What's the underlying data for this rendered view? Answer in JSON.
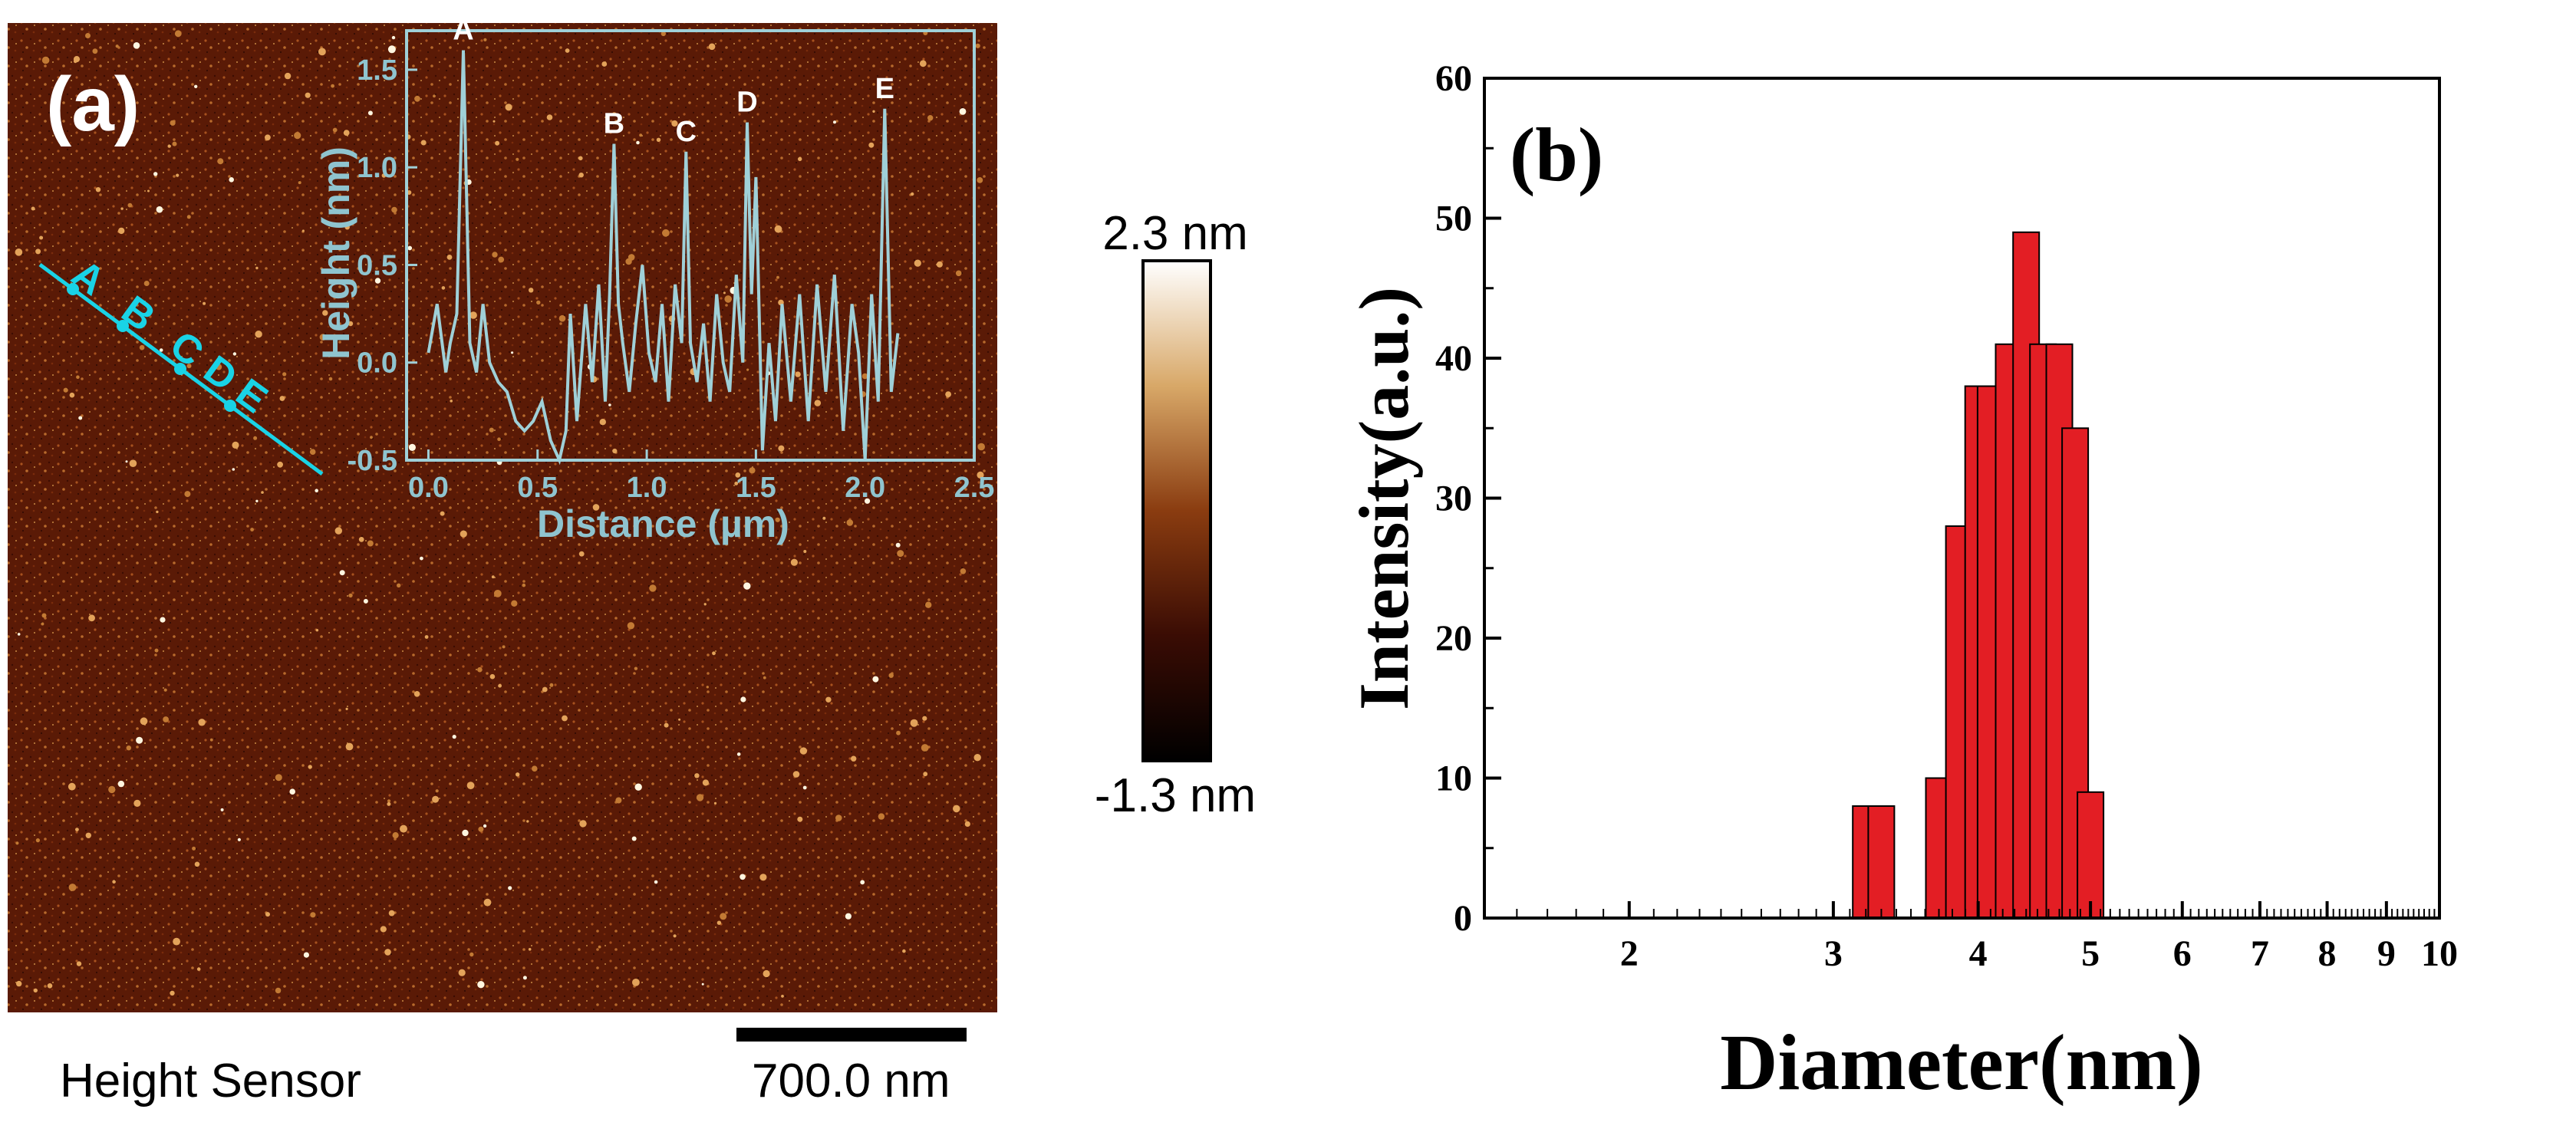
{
  "panel_a": {
    "label": "(a)",
    "caption": "Height Sensor",
    "scale_bar_label": "700.0 nm",
    "colorbar": {
      "max_label": "2.3 nm",
      "min_label": "-1.3 nm"
    },
    "line_markers": [
      "A",
      "B",
      "C",
      "D",
      "E"
    ],
    "colors": {
      "afm_background": "#5a1a06",
      "line": "#19d3e6",
      "inset_line": "#9fd0d8"
    }
  },
  "chart_data": [
    {
      "type": "line",
      "title": "",
      "xlabel": "Distance (µm)",
      "ylabel": "Height (nm)",
      "xlim": [
        -0.1,
        2.5
      ],
      "ylim": [
        -0.5,
        1.7
      ],
      "x_ticks": [
        "0.0",
        "0.5",
        "1.0",
        "1.5",
        "2.0",
        "2.5"
      ],
      "y_ticks": [
        "-0.5",
        "0.0",
        "0.5",
        "1.0",
        "1.5"
      ],
      "peak_labels": [
        {
          "label": "A",
          "x": 0.16,
          "y": 1.6
        },
        {
          "label": "B",
          "x": 0.85,
          "y": 1.12
        },
        {
          "label": "C",
          "x": 1.18,
          "y": 1.08
        },
        {
          "label": "D",
          "x": 1.46,
          "y": 1.23
        },
        {
          "label": "E",
          "x": 2.09,
          "y": 1.3
        }
      ],
      "x": [
        0.0,
        0.04,
        0.08,
        0.1,
        0.13,
        0.16,
        0.19,
        0.22,
        0.25,
        0.28,
        0.32,
        0.36,
        0.4,
        0.44,
        0.48,
        0.52,
        0.56,
        0.6,
        0.63,
        0.65,
        0.68,
        0.72,
        0.75,
        0.78,
        0.81,
        0.83,
        0.85,
        0.87,
        0.89,
        0.92,
        0.95,
        0.98,
        1.01,
        1.04,
        1.07,
        1.1,
        1.13,
        1.16,
        1.18,
        1.2,
        1.23,
        1.26,
        1.29,
        1.32,
        1.35,
        1.38,
        1.41,
        1.44,
        1.46,
        1.48,
        1.5,
        1.53,
        1.56,
        1.59,
        1.62,
        1.66,
        1.7,
        1.74,
        1.78,
        1.82,
        1.86,
        1.9,
        1.94,
        1.97,
        2.0,
        2.03,
        2.06,
        2.09,
        2.12,
        2.15
      ],
      "y": [
        0.05,
        0.3,
        -0.05,
        0.1,
        0.25,
        1.6,
        0.1,
        -0.05,
        0.3,
        0.0,
        -0.1,
        -0.15,
        -0.3,
        -0.35,
        -0.3,
        -0.2,
        -0.4,
        -0.5,
        -0.35,
        0.25,
        -0.3,
        0.3,
        -0.1,
        0.4,
        -0.2,
        0.35,
        1.12,
        0.3,
        0.1,
        -0.15,
        0.2,
        0.5,
        0.05,
        -0.1,
        0.3,
        -0.2,
        0.4,
        0.1,
        1.08,
        0.1,
        -0.1,
        0.2,
        -0.2,
        0.35,
        0.0,
        -0.15,
        0.45,
        0.0,
        1.23,
        0.35,
        0.95,
        -0.45,
        0.1,
        -0.3,
        0.3,
        -0.2,
        0.35,
        -0.3,
        0.4,
        -0.15,
        0.45,
        -0.35,
        0.3,
        0.05,
        -0.5,
        0.35,
        -0.2,
        1.3,
        -0.15,
        0.15
      ]
    },
    {
      "type": "bar",
      "title": "",
      "panel_label": "(b)",
      "xlabel": "Diameter(nm)",
      "ylabel": "Intensity(a.u.)",
      "x_scale": "log",
      "xlim": [
        1.5,
        10
      ],
      "ylim": [
        0,
        60
      ],
      "x_ticks": [
        "2",
        "3",
        "4",
        "5",
        "6",
        "7",
        "8",
        "9",
        "10"
      ],
      "y_ticks": [
        "0",
        "10",
        "20",
        "30",
        "40",
        "50",
        "60"
      ],
      "bar_color": "#e31e24",
      "categories": [
        3.2,
        3.3,
        3.7,
        3.85,
        4.0,
        4.1,
        4.25,
        4.4,
        4.55,
        4.7,
        4.85,
        5.0
      ],
      "values": [
        8,
        8,
        10,
        28,
        38,
        38,
        41,
        49,
        41,
        41,
        35,
        9
      ]
    }
  ]
}
